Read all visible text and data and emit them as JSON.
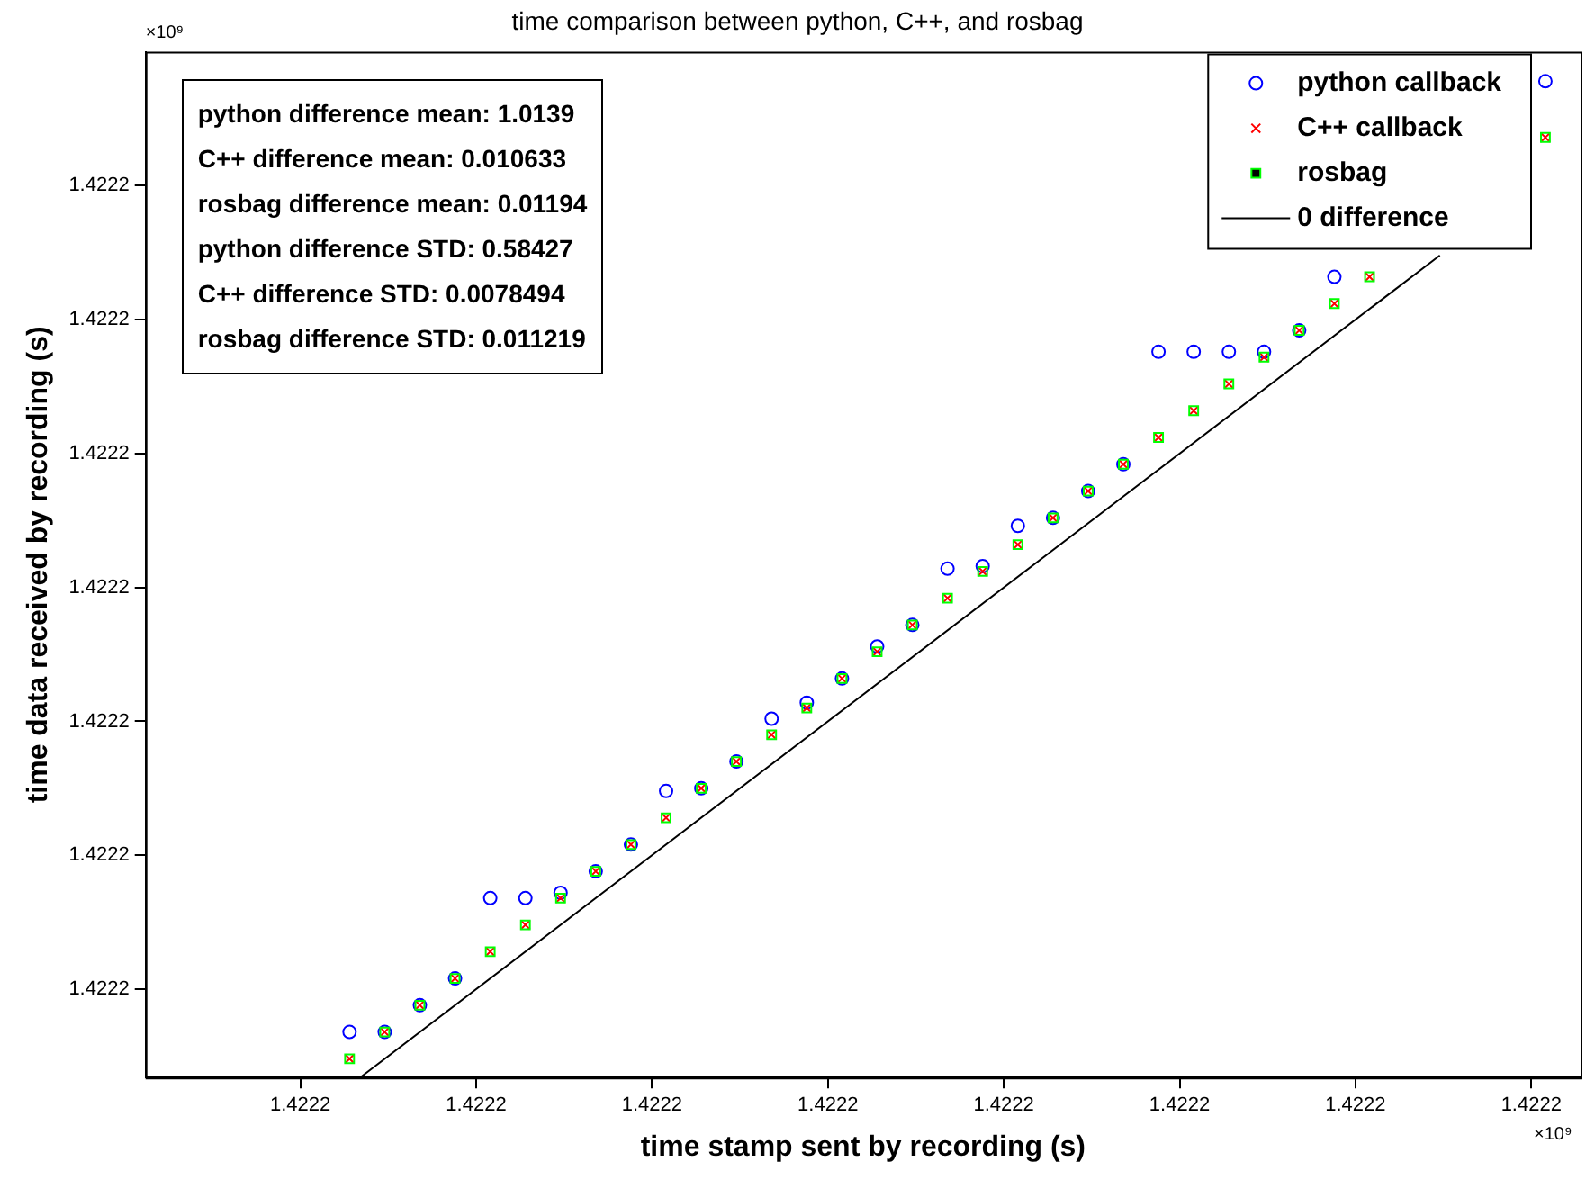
{
  "chart_data": {
    "type": "scatter",
    "title": "time comparison between python, C++, and rosbag",
    "xlabel": "time stamp sent by recording (s)",
    "ylabel": "time data received by recording (s)",
    "annotations": [
      "python difference mean: 1.0139",
      "C++ difference mean: 0.010633",
      "rosbag difference mean: 0.01194",
      "python difference STD: 0.58427",
      "C++ difference STD: 0.0078494",
      "rosbag difference STD: 0.011219",
      "×10⁹",
      "×10⁹"
    ],
    "x": [
      1.4222,
      1.422200001,
      1.422200002,
      1.422200003,
      1.422200004,
      1.422200005,
      1.422200006,
      1.422200007,
      1.422200008,
      1.422200009,
      1.42220001,
      1.422200011,
      1.422200012,
      1.422200013,
      1.422200014,
      1.422200015,
      1.422200016,
      1.422200017,
      1.422200018,
      1.422200019,
      1.42220002,
      1.422200021,
      1.422200022,
      1.422200023,
      1.422200024,
      1.422200025,
      1.422200026,
      1.422200027,
      1.422200028,
      1.422200029,
      1.42220003,
      1.422200031,
      1.422200032,
      1.422200033,
      1.422200034
    ],
    "series": [
      {
        "name": "python callback",
        "color": "#0000ff",
        "marker": "circle",
        "values": [
          1.422200002,
          1.422200002,
          1.422200003,
          1.422200004,
          1.422200007,
          1.422200007,
          1.4222000072,
          1.422200008,
          1.422200009,
          1.422200011,
          1.4222000111,
          1.4222000121,
          1.4222000137,
          1.4222000143,
          1.4222000152,
          1.4222000164,
          1.4222000172,
          1.4222000193,
          1.4222000194,
          1.4222000209,
          1.4222000212,
          1.4222000222,
          1.4222000232,
          1.4222000274,
          1.4222000274,
          1.4222000274,
          1.4222000274,
          1.4222000282,
          1.4222000302,
          null,
          null,
          null,
          null,
          null,
          1.4222000375
        ]
      },
      {
        "name": "C++ callback",
        "color": "#ff0000",
        "marker": "cross",
        "values": [
          1.422200001,
          1.422200002,
          1.422200003,
          1.422200004,
          1.422200005,
          1.422200006,
          1.422200007,
          1.422200008,
          1.422200009,
          1.42220001,
          1.4222000111,
          1.4222000121,
          1.4222000131,
          1.4222000141,
          1.4222000152,
          1.4222000162,
          1.4222000172,
          1.4222000182,
          1.4222000192,
          1.4222000202,
          1.4222000212,
          1.4222000222,
          1.4222000232,
          1.4222000242,
          1.4222000252,
          1.4222000262,
          1.4222000272,
          1.4222000282,
          1.4222000292,
          1.4222000302,
          null,
          null,
          null,
          null,
          1.4222000354
        ]
      },
      {
        "name": "rosbag",
        "color": "#00ff00",
        "marker": "square",
        "values": [
          1.422200001,
          1.422200002,
          1.422200003,
          1.422200004,
          1.422200005,
          1.422200006,
          1.422200007,
          1.422200008,
          1.422200009,
          1.42220001,
          1.4222000111,
          1.4222000121,
          1.4222000131,
          1.4222000141,
          1.4222000152,
          1.4222000162,
          1.4222000172,
          1.4222000182,
          1.4222000192,
          1.4222000202,
          1.4222000212,
          1.4222000222,
          1.4222000232,
          1.4222000242,
          1.4222000252,
          1.4222000262,
          1.4222000272,
          1.4222000282,
          1.4222000292,
          1.4222000302,
          null,
          null,
          null,
          null,
          1.4222000354
        ]
      },
      {
        "name": "0 difference",
        "type": "line",
        "color": "#000000",
        "marker": "none",
        "line_style": "solid",
        "x": [
          1.42220000035,
          1.422200031
        ],
        "values": [
          1.42220000035,
          1.422200031
        ]
      }
    ],
    "xlim": [
      1.4221999942,
      1.422200035
    ],
    "xticks": [
      {
        "value": 1.4221999986,
        "label": "1.4222"
      },
      {
        "value": 1.4222000036,
        "label": "1.4222"
      },
      {
        "value": 1.4222000086,
        "label": "1.4222"
      },
      {
        "value": 1.4222000136,
        "label": "1.4222"
      },
      {
        "value": 1.4222000186,
        "label": "1.4222"
      },
      {
        "value": 1.4222000236,
        "label": "1.4222"
      },
      {
        "value": 1.4222000286,
        "label": "1.4222"
      },
      {
        "value": 1.4222000336,
        "label": "1.4222"
      }
    ],
    "ylim": [
      1.4222000003,
      1.4222000386
    ],
    "yticks": [
      {
        "value": 1.4222000036,
        "label": "1.4222"
      },
      {
        "value": 1.4222000086,
        "label": "1.4222"
      },
      {
        "value": 1.4222000136,
        "label": "1.4222"
      },
      {
        "value": 1.4222000186,
        "label": "1.4222"
      },
      {
        "value": 1.4222000236,
        "label": "1.4222"
      },
      {
        "value": 1.4222000286,
        "label": "1.4222"
      },
      {
        "value": 1.4222000336,
        "label": "1.4222"
      }
    ],
    "legend": "top right"
  }
}
